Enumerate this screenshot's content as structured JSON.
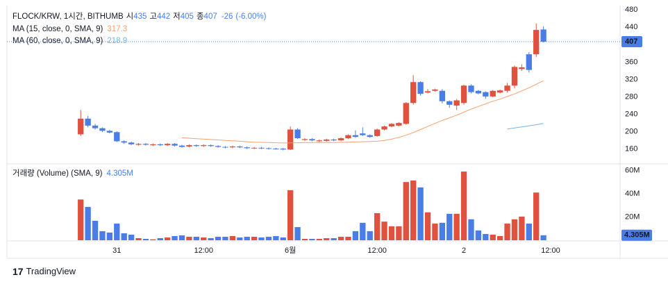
{
  "chart_data": {
    "type": "candlestick",
    "symbol": "FLOCK/KRW, 1시간, BITHUMB",
    "ohlc_legend": [
      {
        "label": "시",
        "value": 435
      },
      {
        "label": "고",
        "value": 442
      },
      {
        "label": "저",
        "value": 405
      },
      {
        "label": "종",
        "value": 407
      }
    ],
    "change": -26,
    "change_pct": "(-6.00%)",
    "xlim": [
      -10.2,
      74.6
    ],
    "xticks": [
      {
        "value": 5,
        "label": "31"
      },
      {
        "value": 17,
        "label": "12:00"
      },
      {
        "value": 29,
        "label": "6월"
      },
      {
        "value": 41,
        "label": "12:00"
      },
      {
        "value": 53,
        "label": "2"
      },
      {
        "value": 65,
        "label": "12:00"
      }
    ],
    "ylim": [
      126,
      490
    ],
    "yticks": [
      160,
      200,
      240,
      280,
      320,
      360,
      440,
      480
    ],
    "up_color": "#e0523f",
    "down_color": "#4a7de6",
    "open": [
      194,
      230,
      214,
      208,
      202,
      199,
      178,
      175,
      170,
      172,
      169,
      171,
      169,
      172,
      168,
      166,
      169,
      167,
      169,
      167,
      165,
      164,
      166,
      164,
      162,
      163,
      162,
      161,
      161,
      159,
      205,
      181,
      183,
      178,
      179,
      182,
      180,
      185,
      192,
      196,
      192,
      190,
      205,
      212,
      214,
      218,
      266,
      314,
      290,
      294,
      294,
      270,
      260,
      266,
      306,
      294,
      291,
      281,
      290,
      294,
      306,
      344,
      378,
      378,
      435
    ],
    "high": [
      250,
      236,
      218,
      210,
      204,
      201,
      180,
      177,
      174,
      174,
      173,
      173,
      174,
      174,
      170,
      171,
      171,
      171,
      171,
      169,
      167,
      168,
      168,
      166,
      165,
      165,
      164,
      163,
      163,
      212,
      208,
      185,
      185,
      182,
      184,
      184,
      187,
      194,
      203,
      210,
      194,
      207,
      214,
      220,
      222,
      268,
      330,
      316,
      298,
      299,
      298,
      272,
      275,
      308,
      309,
      296,
      293,
      296,
      297,
      312,
      352,
      355,
      383,
      449,
      442
    ],
    "low": [
      190,
      210,
      205,
      199,
      196,
      176,
      172,
      169,
      168,
      168,
      167,
      167,
      167,
      166,
      163,
      164,
      165,
      165,
      165,
      163,
      162,
      162,
      162,
      160,
      160,
      160,
      159,
      159,
      157,
      158,
      183,
      179,
      178,
      176,
      177,
      178,
      178,
      183,
      186,
      190,
      186,
      188,
      203,
      210,
      212,
      216,
      262,
      283,
      288,
      292,
      265,
      255,
      250,
      262,
      288,
      286,
      276,
      279,
      288,
      290,
      300,
      340,
      336,
      372,
      405
    ],
    "close": [
      230,
      214,
      208,
      202,
      198,
      178,
      175,
      171,
      172,
      170,
      171,
      169,
      172,
      168,
      165,
      169,
      167,
      169,
      167,
      165,
      164,
      166,
      164,
      162,
      163,
      162,
      161,
      160,
      159,
      205,
      185,
      183,
      180,
      180,
      182,
      180,
      185,
      192,
      188,
      192,
      188,
      205,
      212,
      218,
      220,
      266,
      314,
      287,
      293,
      297,
      270,
      262,
      272,
      306,
      291,
      288,
      281,
      294,
      295,
      306,
      349,
      348,
      342,
      434,
      407
    ],
    "moving_averages": [
      {
        "name": "MA (15, close, 0, SMA, 9)",
        "value": 317.3,
        "color": "#f5a06d",
        "values": [
          null,
          null,
          null,
          null,
          null,
          null,
          null,
          null,
          null,
          null,
          null,
          null,
          null,
          null,
          186,
          185,
          184,
          183,
          182,
          181,
          180,
          179,
          178,
          177,
          176,
          175.5,
          175,
          174.5,
          174,
          174,
          174.5,
          175,
          175,
          175,
          175,
          175,
          175.5,
          176,
          176.5,
          177,
          177.5,
          178,
          180,
          183,
          187,
          192,
          198,
          205,
          212,
          219,
          226,
          232,
          238,
          245,
          252,
          258,
          264,
          270,
          275,
          281,
          287,
          294,
          301,
          309,
          317.3
        ]
      },
      {
        "name": "MA (60, close, 0, SMA, 9)",
        "value": 218.9,
        "color": "#6fb6e8",
        "values": [
          null,
          null,
          null,
          null,
          null,
          null,
          null,
          null,
          null,
          null,
          null,
          null,
          null,
          null,
          null,
          null,
          null,
          null,
          null,
          null,
          null,
          null,
          null,
          null,
          null,
          null,
          null,
          null,
          null,
          null,
          null,
          null,
          null,
          null,
          null,
          null,
          null,
          null,
          null,
          null,
          null,
          null,
          null,
          null,
          null,
          null,
          null,
          null,
          null,
          null,
          null,
          null,
          null,
          null,
          null,
          null,
          null,
          null,
          null,
          206,
          208.5,
          211,
          213.5,
          216,
          218.9
        ]
      }
    ],
    "volume": {
      "title": "거래량 (Volume) (SMA, 9)",
      "last_label": "4.305M",
      "ylim": [
        0,
        65000000
      ],
      "yticks": [
        {
          "value": 20000000,
          "label": "20M"
        },
        {
          "value": 40000000,
          "label": "40M"
        },
        {
          "value": 60000000,
          "label": "60M"
        }
      ],
      "values": [
        35000000,
        28600000,
        16700000,
        7800000,
        6600000,
        14300000,
        6000000,
        4800000,
        1800000,
        1200000,
        800000,
        1800000,
        2400000,
        3600000,
        4200000,
        3000000,
        3000000,
        2400000,
        1800000,
        3000000,
        3000000,
        3600000,
        2400000,
        3000000,
        3000000,
        2400000,
        3000000,
        3600000,
        2400000,
        43000000,
        11300000,
        1200000,
        1200000,
        1200000,
        1800000,
        1800000,
        3000000,
        3000000,
        7800000,
        15000000,
        7800000,
        23300000,
        16000000,
        12000000,
        12000000,
        50000000,
        51300000,
        45400000,
        24000000,
        14300000,
        15000000,
        22700000,
        22700000,
        59000000,
        18000000,
        8400000,
        5400000,
        4800000,
        3600000,
        14300000,
        18000000,
        20300000,
        14300000,
        41000000,
        4305000
      ]
    },
    "branding": "TradingView"
  }
}
